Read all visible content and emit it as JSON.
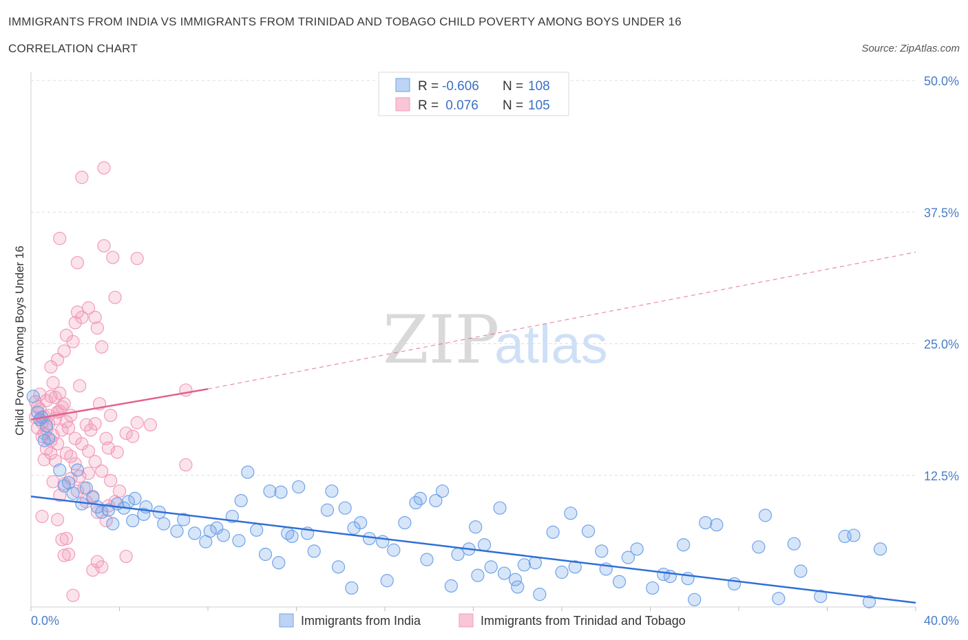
{
  "header": {
    "title": "IMMIGRANTS FROM INDIA VS IMMIGRANTS FROM TRINIDAD AND TOBAGO CHILD POVERTY AMONG BOYS UNDER 16",
    "subtitle": "CORRELATION CHART",
    "source": "Source: ZipAtlas.com"
  },
  "watermark": {
    "zip": "ZIP",
    "atlas": "atlas"
  },
  "colors": {
    "india": "#6fa3e8",
    "india_line": "#2f6fd6",
    "trinidad": "#f29bb8",
    "trinidad_line": "#e0628f",
    "tick_text": "#4a7cc7"
  },
  "legend": {
    "india": {
      "r_label": "R = ",
      "r_value": "-0.606",
      "n_label": "N = ",
      "n_value": "108"
    },
    "trinidad": {
      "r_label": "R = ",
      "r_value": " 0.076",
      "n_label": "N = ",
      "n_value": "105"
    }
  },
  "chart_data": {
    "type": "scatter",
    "title": "IMMIGRANTS FROM INDIA VS IMMIGRANTS FROM TRINIDAD AND TOBAGO CHILD POVERTY AMONG BOYS UNDER 16",
    "ylabel": "Child Poverty Among Boys Under 16",
    "xlim": [
      0,
      40
    ],
    "ylim": [
      0,
      50
    ],
    "x_tick_labels": [
      "0.0%",
      "40.0%"
    ],
    "y_tick_labels": [
      "12.5%",
      "25.0%",
      "37.5%",
      "50.0%"
    ],
    "y_ticks": [
      12.5,
      25,
      37.5,
      50
    ],
    "grid": true,
    "legend_placement": "top-center",
    "series": [
      {
        "name": "Immigrants from India",
        "trend": {
          "x0": 0,
          "y0": 10.5,
          "x1": 40,
          "y1": 0.4,
          "dashed_extension": false
        },
        "points": [
          [
            0.1,
            20.0
          ],
          [
            0.3,
            18.5
          ],
          [
            0.5,
            18.0
          ],
          [
            0.7,
            17.2
          ],
          [
            0.4,
            17.8
          ],
          [
            0.8,
            16.0
          ],
          [
            0.6,
            15.8
          ],
          [
            1.3,
            13.0
          ],
          [
            2.1,
            13.0
          ],
          [
            1.5,
            11.5
          ],
          [
            1.7,
            11.8
          ],
          [
            2.5,
            11.3
          ],
          [
            1.9,
            10.8
          ],
          [
            2.8,
            10.4
          ],
          [
            2.3,
            9.8
          ],
          [
            3.0,
            9.5
          ],
          [
            3.2,
            9.0
          ],
          [
            3.5,
            9.2
          ],
          [
            3.9,
            9.8
          ],
          [
            4.4,
            10.0
          ],
          [
            4.2,
            9.4
          ],
          [
            4.7,
            10.3
          ],
          [
            5.2,
            9.5
          ],
          [
            5.8,
            9.0
          ],
          [
            3.7,
            7.9
          ],
          [
            4.6,
            8.2
          ],
          [
            5.1,
            8.8
          ],
          [
            6.0,
            7.9
          ],
          [
            6.6,
            7.2
          ],
          [
            6.9,
            8.3
          ],
          [
            7.4,
            7.0
          ],
          [
            8.1,
            7.2
          ],
          [
            8.4,
            7.5
          ],
          [
            8.7,
            6.8
          ],
          [
            9.4,
            6.3
          ],
          [
            9.8,
            12.8
          ],
          [
            9.5,
            10.1
          ],
          [
            10.2,
            7.3
          ],
          [
            10.8,
            11.0
          ],
          [
            11.3,
            10.9
          ],
          [
            11.8,
            6.7
          ],
          [
            12.1,
            11.4
          ],
          [
            11.6,
            7.0
          ],
          [
            12.5,
            7.0
          ],
          [
            13.4,
            9.2
          ],
          [
            13.6,
            11.0
          ],
          [
            14.2,
            9.4
          ],
          [
            14.6,
            7.5
          ],
          [
            14.9,
            8.0
          ],
          [
            15.3,
            6.5
          ],
          [
            15.9,
            6.2
          ],
          [
            16.4,
            5.4
          ],
          [
            16.9,
            8.0
          ],
          [
            17.4,
            9.9
          ],
          [
            17.6,
            10.3
          ],
          [
            18.3,
            10.1
          ],
          [
            18.6,
            11.0
          ],
          [
            19.3,
            5.0
          ],
          [
            19.8,
            5.5
          ],
          [
            20.1,
            7.6
          ],
          [
            20.8,
            3.8
          ],
          [
            20.5,
            5.9
          ],
          [
            21.2,
            9.4
          ],
          [
            21.4,
            3.2
          ],
          [
            21.9,
            2.6
          ],
          [
            22.3,
            4.0
          ],
          [
            22.8,
            4.2
          ],
          [
            23.6,
            7.1
          ],
          [
            24.4,
            8.9
          ],
          [
            24.6,
            3.8
          ],
          [
            25.2,
            7.2
          ],
          [
            25.8,
            5.3
          ],
          [
            26.6,
            2.4
          ],
          [
            27.4,
            5.5
          ],
          [
            28.1,
            1.8
          ],
          [
            28.6,
            3.1
          ],
          [
            28.9,
            2.9
          ],
          [
            29.5,
            5.9
          ],
          [
            29.7,
            2.7
          ],
          [
            30.5,
            8.0
          ],
          [
            31.0,
            7.8
          ],
          [
            32.9,
            5.7
          ],
          [
            33.2,
            8.7
          ],
          [
            34.5,
            6.0
          ],
          [
            34.8,
            3.4
          ],
          [
            35.7,
            1.0
          ],
          [
            36.8,
            6.7
          ],
          [
            37.2,
            6.8
          ],
          [
            38.4,
            5.5
          ],
          [
            37.9,
            0.5
          ],
          [
            7.9,
            6.2
          ],
          [
            9.1,
            8.6
          ],
          [
            10.6,
            5.0
          ],
          [
            11.2,
            4.2
          ],
          [
            12.8,
            5.3
          ],
          [
            13.9,
            3.8
          ],
          [
            14.5,
            1.8
          ],
          [
            16.1,
            2.5
          ],
          [
            17.9,
            4.5
          ],
          [
            19.0,
            2.0
          ],
          [
            20.2,
            3.0
          ],
          [
            22.0,
            1.9
          ],
          [
            23.0,
            1.2
          ],
          [
            24.0,
            3.3
          ],
          [
            26.0,
            3.6
          ],
          [
            27.0,
            4.7
          ],
          [
            30.0,
            0.7
          ],
          [
            31.8,
            2.2
          ],
          [
            33.8,
            0.8
          ]
        ]
      },
      {
        "name": "Immigrants from Trinidad and Tobago",
        "trend": {
          "x0": 0,
          "y0": 17.8,
          "x1": 8.0,
          "y1": 20.7,
          "dashed_to_x": 40,
          "dashed_to_y": 33.7
        },
        "points": [
          [
            0.2,
            19.5
          ],
          [
            0.3,
            19.0
          ],
          [
            0.4,
            18.8
          ],
          [
            0.4,
            17.8
          ],
          [
            0.5,
            17.5
          ],
          [
            0.3,
            17.0
          ],
          [
            0.6,
            18.1
          ],
          [
            0.7,
            19.6
          ],
          [
            0.9,
            20.0
          ],
          [
            0.8,
            18.2
          ],
          [
            0.5,
            16.2
          ],
          [
            0.7,
            15.0
          ],
          [
            0.9,
            14.6
          ],
          [
            1.1,
            13.9
          ],
          [
            0.6,
            14.0
          ],
          [
            0.9,
            22.8
          ],
          [
            1.0,
            21.3
          ],
          [
            1.2,
            23.5
          ],
          [
            1.3,
            20.3
          ],
          [
            1.5,
            24.3
          ],
          [
            1.6,
            25.8
          ],
          [
            1.4,
            19.0
          ],
          [
            1.2,
            18.5
          ],
          [
            1.8,
            18.2
          ],
          [
            1.9,
            25.2
          ],
          [
            2.0,
            27.0
          ],
          [
            2.1,
            28.0
          ],
          [
            2.1,
            32.7
          ],
          [
            2.3,
            27.5
          ],
          [
            2.6,
            28.4
          ],
          [
            2.9,
            27.5
          ],
          [
            3.0,
            26.5
          ],
          [
            3.2,
            24.7
          ],
          [
            3.3,
            34.3
          ],
          [
            3.7,
            33.2
          ],
          [
            3.8,
            29.4
          ],
          [
            4.8,
            33.1
          ],
          [
            2.3,
            40.8
          ],
          [
            3.3,
            41.7
          ],
          [
            1.3,
            35.0
          ],
          [
            2.2,
            21.0
          ],
          [
            2.5,
            17.3
          ],
          [
            2.7,
            16.8
          ],
          [
            2.9,
            17.4
          ],
          [
            3.1,
            19.3
          ],
          [
            3.4,
            16.0
          ],
          [
            3.5,
            15.1
          ],
          [
            3.6,
            18.2
          ],
          [
            3.9,
            14.7
          ],
          [
            4.3,
            16.5
          ],
          [
            4.6,
            16.2
          ],
          [
            4.8,
            17.5
          ],
          [
            5.4,
            17.3
          ],
          [
            7.0,
            13.5
          ],
          [
            7.0,
            20.6
          ],
          [
            1.6,
            14.6
          ],
          [
            1.8,
            14.3
          ],
          [
            2.0,
            13.6
          ],
          [
            2.2,
            12.4
          ],
          [
            2.6,
            12.7
          ],
          [
            1.0,
            11.9
          ],
          [
            1.5,
            11.7
          ],
          [
            2.4,
            11.3
          ],
          [
            2.8,
            10.5
          ],
          [
            3.5,
            9.6
          ],
          [
            3.8,
            10.0
          ],
          [
            1.3,
            10.6
          ],
          [
            0.5,
            8.6
          ],
          [
            1.2,
            8.3
          ],
          [
            1.6,
            6.5
          ],
          [
            1.4,
            6.4
          ],
          [
            1.7,
            5.0
          ],
          [
            2.8,
            3.5
          ],
          [
            3.0,
            4.3
          ],
          [
            3.2,
            3.8
          ],
          [
            4.3,
            4.8
          ],
          [
            1.9,
            1.1
          ],
          [
            1.5,
            4.9
          ],
          [
            0.6,
            16.5
          ],
          [
            0.8,
            17.4
          ],
          [
            1.1,
            17.9
          ],
          [
            1.3,
            18.6
          ],
          [
            1.5,
            19.3
          ],
          [
            1.7,
            17.0
          ],
          [
            1.1,
            19.9
          ],
          [
            0.4,
            20.2
          ],
          [
            0.2,
            18.0
          ],
          [
            0.7,
            16.9
          ],
          [
            0.9,
            15.8
          ],
          [
            1.0,
            16.3
          ],
          [
            1.2,
            15.5
          ],
          [
            1.4,
            16.8
          ],
          [
            1.6,
            17.6
          ],
          [
            2.0,
            16.0
          ],
          [
            2.3,
            15.5
          ],
          [
            2.6,
            14.8
          ],
          [
            2.9,
            13.8
          ],
          [
            3.2,
            12.9
          ],
          [
            3.6,
            12.0
          ],
          [
            4.0,
            11.0
          ],
          [
            1.8,
            12.2
          ],
          [
            2.1,
            11.0
          ],
          [
            2.5,
            10.0
          ],
          [
            3.0,
            9.0
          ],
          [
            3.4,
            8.2
          ]
        ]
      }
    ]
  },
  "bottom_legend": {
    "india_label": "Immigrants from India",
    "trinidad_label": "Immigrants from Trinidad and Tobago"
  }
}
